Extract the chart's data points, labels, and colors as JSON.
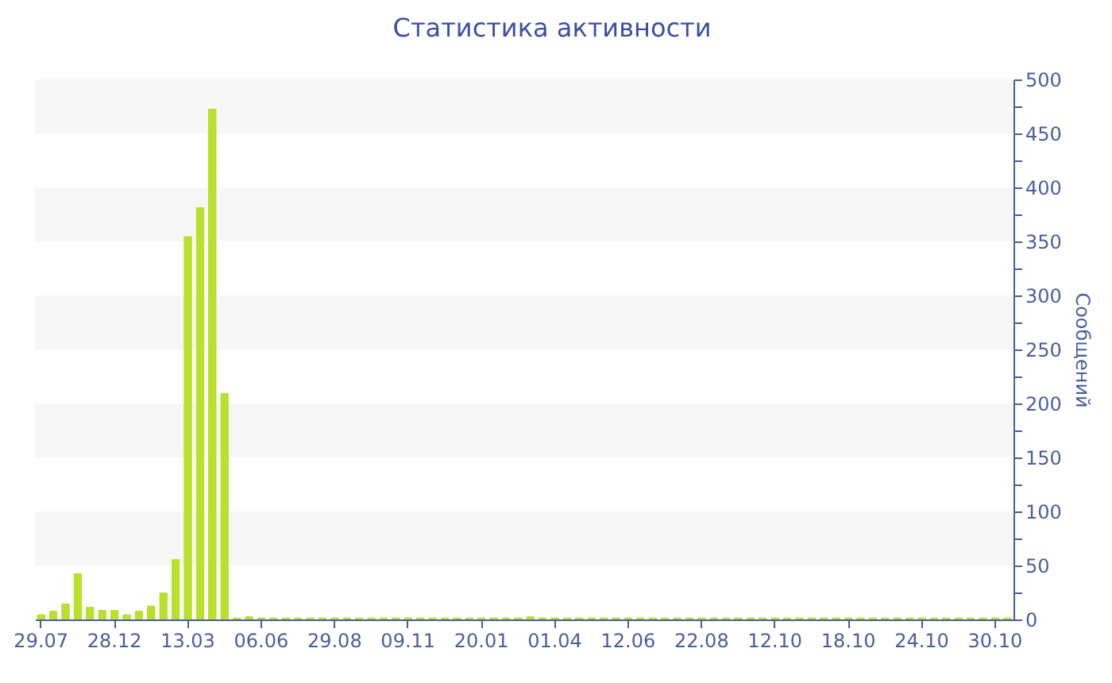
{
  "chart_data": {
    "type": "bar",
    "title": "Статистика активности",
    "ylabel": "Сообщений",
    "categories": [
      "29.07",
      null,
      null,
      null,
      null,
      null,
      "28.12",
      null,
      null,
      null,
      null,
      null,
      "13.03",
      null,
      null,
      null,
      null,
      null,
      "06.06",
      null,
      null,
      null,
      null,
      null,
      "29.08",
      null,
      null,
      null,
      null,
      null,
      "09.11",
      null,
      null,
      null,
      null,
      null,
      "20.01",
      null,
      null,
      null,
      null,
      null,
      "01.04",
      null,
      null,
      null,
      null,
      null,
      "12.06",
      null,
      null,
      null,
      null,
      null,
      "22.08",
      null,
      null,
      null,
      null,
      null,
      "12.10",
      null,
      null,
      null,
      null,
      null,
      "18.10",
      null,
      null,
      null,
      null,
      null,
      "24.10",
      null,
      null,
      null,
      null,
      null,
      "30.10",
      null
    ],
    "values": [
      5,
      8,
      15,
      43,
      12,
      9,
      9,
      5,
      8,
      13,
      25,
      56,
      355,
      382,
      473,
      210,
      2,
      3,
      2,
      2,
      2,
      2,
      2,
      2,
      2,
      2,
      2,
      2,
      2,
      2,
      2,
      2,
      2,
      2,
      2,
      2,
      2,
      2,
      2,
      2,
      3,
      2,
      2,
      2,
      2,
      2,
      2,
      2,
      2,
      2,
      2,
      2,
      2,
      2,
      2,
      2,
      2,
      2,
      2,
      2,
      2,
      2,
      2,
      2,
      2,
      2,
      2,
      2,
      2,
      2,
      2,
      2,
      2,
      2,
      2,
      2,
      2,
      2,
      2,
      2
    ],
    "color": "#b8e02c",
    "ylim": [
      0,
      500
    ],
    "yticks": [
      0,
      {
        "value": 25,
        "label": null
      },
      50,
      {
        "value": 75,
        "label": null
      },
      100,
      {
        "value": 125,
        "label": null
      },
      150,
      {
        "value": 175,
        "label": null
      },
      200,
      {
        "value": 225,
        "label": null
      },
      250,
      {
        "value": 275,
        "label": null
      },
      300,
      {
        "value": 325,
        "label": null
      },
      350,
      {
        "value": 375,
        "label": null
      },
      400,
      {
        "value": 425,
        "label": null
      },
      450,
      {
        "value": 475,
        "label": null
      },
      500
    ],
    "bands": [
      {
        "axis": "y",
        "from": 50,
        "to": 100,
        "color": "#f7f7f7"
      },
      {
        "axis": "y",
        "from": 150,
        "to": 200,
        "color": "#f7f7f7"
      },
      {
        "axis": "y",
        "from": 250,
        "to": 300,
        "color": "#f7f7f7"
      },
      {
        "axis": "y",
        "from": 350,
        "to": 400,
        "color": "#f7f7f7"
      },
      {
        "axis": "y",
        "from": 450,
        "to": 500,
        "color": "#f7f7f7"
      }
    ]
  }
}
